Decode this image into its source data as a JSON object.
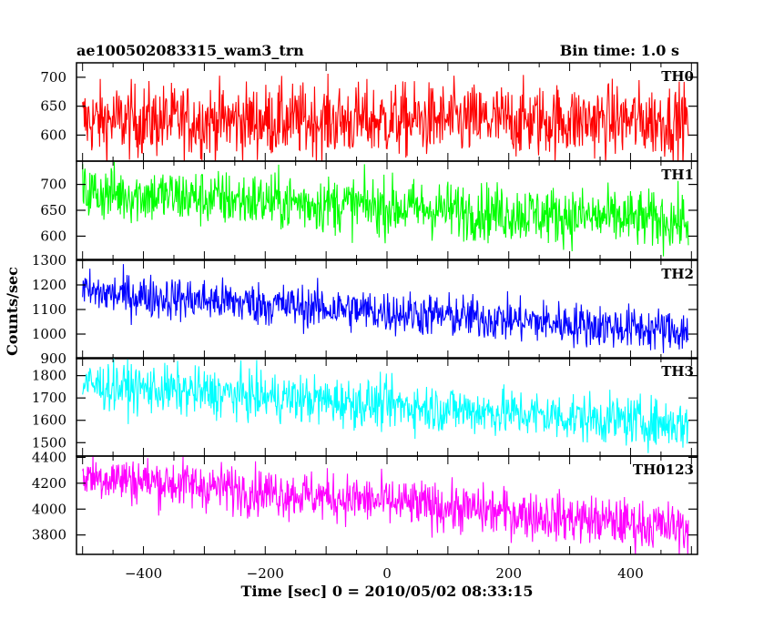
{
  "header": {
    "title": "ae100502083315_wam3_trn",
    "bin_time": "Bin time: 1.0 s"
  },
  "chart_data": {
    "type": "line",
    "xlabel": "Time [sec] 0 = 2010/05/02 08:33:15",
    "ylabel": "Counts/sec",
    "xlim": [
      -510,
      510
    ],
    "x_ticks": [
      -400,
      -200,
      0,
      200,
      400
    ],
    "x_range_data": [
      -500,
      495
    ],
    "grid": false,
    "panels": [
      {
        "name": "TH0",
        "color": "#ff0000",
        "ylim": [
          555,
          725
        ],
        "y_ticks": [
          600,
          650,
          700
        ],
        "start": 625,
        "end": 625,
        "noise": 32
      },
      {
        "name": "TH1",
        "color": "#00ff00",
        "ylim": [
          555,
          745
        ],
        "y_ticks": [
          600,
          650,
          700
        ],
        "start": 685,
        "end": 628,
        "noise": 28
      },
      {
        "name": "TH2",
        "color": "#0000ff",
        "ylim": [
          900,
          1300
        ],
        "y_ticks": [
          900,
          1000,
          1100,
          1200,
          1300
        ],
        "start": 1170,
        "end": 1010,
        "noise": 45
      },
      {
        "name": "TH3",
        "color": "#00ffff",
        "ylim": [
          1440,
          1880
        ],
        "y_ticks": [
          1500,
          1600,
          1700,
          1800
        ],
        "start": 1760,
        "end": 1580,
        "noise": 55
      },
      {
        "name": "TH0123",
        "color": "#ff00ff",
        "ylim": [
          3650,
          4410
        ],
        "y_ticks": [
          3800,
          4000,
          4200,
          4400
        ],
        "start": 4260,
        "end": 3850,
        "noise": 95
      }
    ]
  }
}
